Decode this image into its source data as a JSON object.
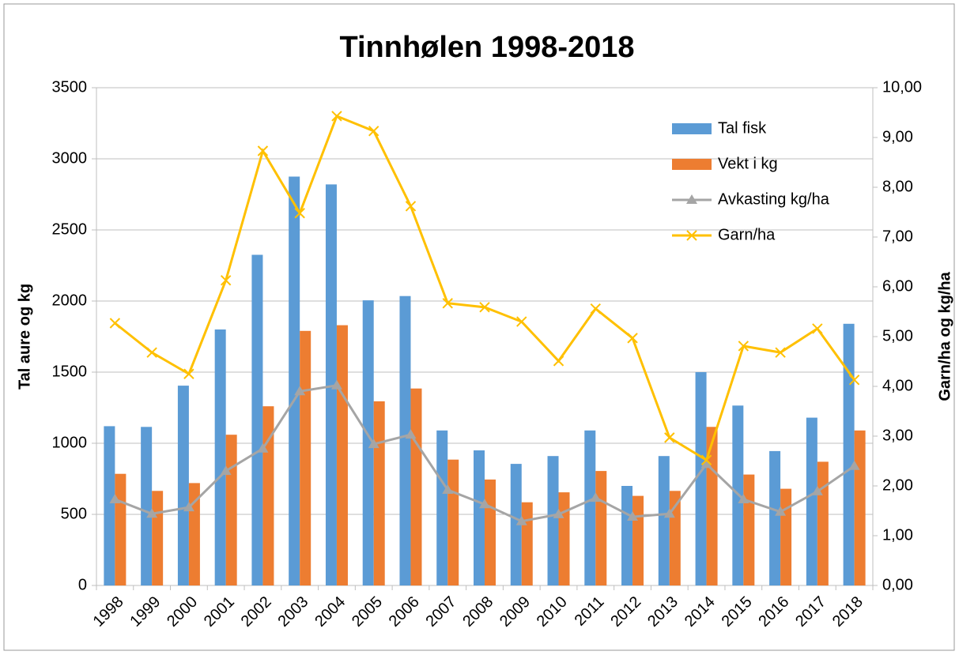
{
  "chart_data": {
    "type": "bar",
    "title": "Tinnhølen 1998-2018",
    "ylabel": "Tal aure og kg",
    "y2label": "Garn/ha og kg/ha",
    "categories": [
      "1998",
      "1999",
      "2000",
      "2001",
      "2002",
      "2003",
      "2004",
      "2005",
      "2006",
      "2007",
      "2008",
      "2009",
      "2010",
      "2011",
      "2012",
      "2013",
      "2014",
      "2015",
      "2016",
      "2017",
      "2018"
    ],
    "series": [
      {
        "name": "Tal fisk",
        "type": "bar",
        "color": "#5b9bd5",
        "values": [
          1120,
          1115,
          1405,
          1800,
          2325,
          2875,
          2820,
          2005,
          2035,
          1090,
          950,
          855,
          910,
          1090,
          700,
          910,
          1500,
          1265,
          945,
          1180,
          1840
        ]
      },
      {
        "name": "Vekt i kg",
        "type": "bar",
        "color": "#ed7d31",
        "values": [
          785,
          665,
          720,
          1060,
          1260,
          1790,
          1830,
          1295,
          1385,
          885,
          745,
          585,
          655,
          805,
          630,
          665,
          1115,
          780,
          680,
          870,
          1090
        ]
      },
      {
        "name": "Avkasting kg/ha",
        "type": "line",
        "marker": "triangle",
        "axis": "y2",
        "color": "#a5a5a5",
        "values": [
          1.73,
          1.44,
          1.57,
          2.3,
          2.75,
          3.9,
          4.02,
          2.84,
          3.03,
          1.92,
          1.63,
          1.29,
          1.43,
          1.76,
          1.38,
          1.44,
          2.44,
          1.73,
          1.48,
          1.89,
          2.4
        ]
      },
      {
        "name": "Garn/ha",
        "type": "line",
        "marker": "x",
        "axis": "y2",
        "color": "#ffc000",
        "values": [
          5.27,
          4.68,
          4.25,
          6.13,
          8.73,
          7.48,
          9.43,
          9.13,
          7.62,
          5.67,
          5.59,
          5.3,
          4.51,
          5.56,
          4.97,
          2.97,
          2.52,
          4.81,
          4.68,
          5.16,
          4.13
        ]
      }
    ],
    "ylim": [
      0,
      3500
    ],
    "yticks": [
      0,
      500,
      1000,
      1500,
      2000,
      2500,
      3000,
      3500
    ],
    "y2lim": [
      0,
      10
    ],
    "y2ticks": [
      {
        "value": 0,
        "label": "0,00"
      },
      {
        "value": 1,
        "label": "1,00"
      },
      {
        "value": 2,
        "label": "2,00"
      },
      {
        "value": 3,
        "label": "3,00"
      },
      {
        "value": 4,
        "label": "4,00"
      },
      {
        "value": 5,
        "label": "5,00"
      },
      {
        "value": 6,
        "label": "6,00"
      },
      {
        "value": 7,
        "label": "7,00"
      },
      {
        "value": 8,
        "label": "8,00"
      },
      {
        "value": 9,
        "label": "9,00"
      },
      {
        "value": 10,
        "label": "10,00"
      }
    ],
    "grid": true,
    "legend": "upper right"
  }
}
